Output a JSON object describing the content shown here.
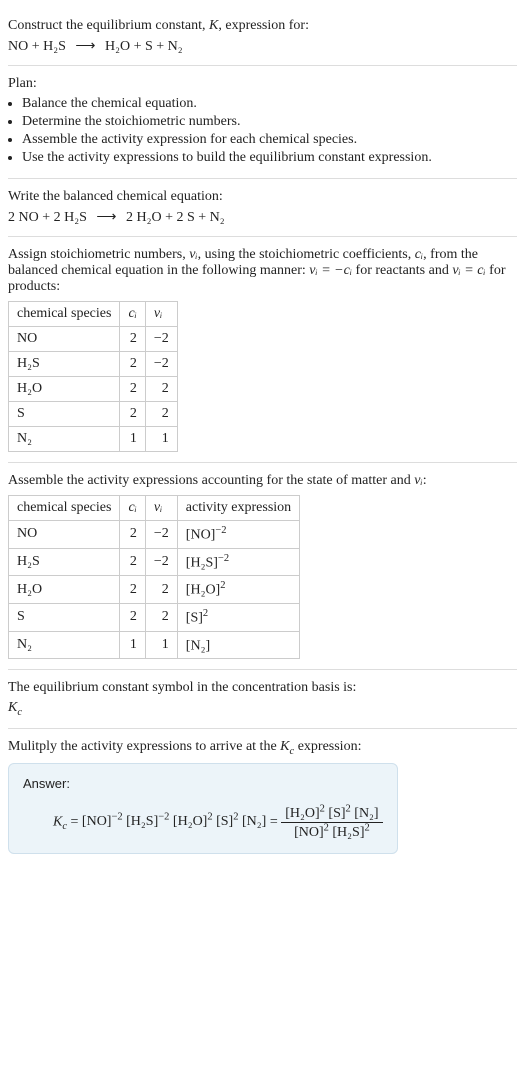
{
  "title_a": "Construct the equilibrium constant, ",
  "title_b": ", expression for:",
  "K": "K",
  "reaction_lhs": "NO + H₂S",
  "arrow": "⟶",
  "reaction_rhs": "H₂O + S + N₂",
  "plan_label": "Plan:",
  "plan": [
    "Balance the chemical equation.",
    "Determine the stoichiometric numbers.",
    "Assemble the activity expression for each chemical species.",
    "Use the activity expressions to build the equilibrium constant expression."
  ],
  "balanced_label": "Write the balanced chemical equation:",
  "balanced_lhs": "2 NO + 2 H₂S",
  "balanced_rhs": "2 H₂O + 2 S + N₂",
  "stoich_para_a": "Assign stoichiometric numbers, ",
  "nu_i": "νᵢ",
  "stoich_para_b": ", using the stoichiometric coefficients, ",
  "c_i": "cᵢ",
  "stoich_para_c": ", from the balanced chemical equation in the following manner: ",
  "rule1": "νᵢ = −cᵢ",
  "stoich_para_d": " for reactants and ",
  "rule2": "νᵢ = cᵢ",
  "stoich_para_e": " for products:",
  "table1": {
    "headers": {
      "species": "chemical species",
      "ci": "cᵢ",
      "vi": "νᵢ"
    },
    "rows": [
      {
        "species": "NO",
        "ci": "2",
        "vi": "−2"
      },
      {
        "species": "H₂S",
        "ci": "2",
        "vi": "−2"
      },
      {
        "species": "H₂O",
        "ci": "2",
        "vi": "2"
      },
      {
        "species": "S",
        "ci": "2",
        "vi": "2"
      },
      {
        "species": "N₂",
        "ci": "1",
        "vi": "1"
      }
    ]
  },
  "activity_label_a": "Assemble the activity expressions accounting for the state of matter and ",
  "activity_label_b": ":",
  "table2": {
    "headers": {
      "species": "chemical species",
      "ci": "cᵢ",
      "vi": "νᵢ",
      "act": "activity expression"
    },
    "rows": [
      {
        "species": "NO",
        "ci": "2",
        "vi": "−2",
        "act_base": "[NO]",
        "act_exp": "−2"
      },
      {
        "species": "H₂S",
        "ci": "2",
        "vi": "−2",
        "act_base": "[H₂S]",
        "act_exp": "−2"
      },
      {
        "species": "H₂O",
        "ci": "2",
        "vi": "2",
        "act_base": "[H₂O]",
        "act_exp": "2"
      },
      {
        "species": "S",
        "ci": "2",
        "vi": "2",
        "act_base": "[S]",
        "act_exp": "2"
      },
      {
        "species": "N₂",
        "ci": "1",
        "vi": "1",
        "act_base": "[N₂]",
        "act_exp": ""
      }
    ]
  },
  "kc_symbol_label": "The equilibrium constant symbol in the concentration basis is:",
  "Kc": "K",
  "Kc_sub": "c",
  "multiply_label_a": "Mulitply the activity expressions to arrive at the ",
  "multiply_label_b": " expression:",
  "answer_label": "Answer:",
  "final": {
    "prefix": "Kc = ",
    "flat": [
      {
        "base": "[NO]",
        "exp": "−2"
      },
      {
        "base": "[H₂S]",
        "exp": "−2"
      },
      {
        "base": "[H₂O]",
        "exp": "2"
      },
      {
        "base": "[S]",
        "exp": "2"
      },
      {
        "base": "[N₂]",
        "exp": ""
      }
    ],
    "eq": " = ",
    "num": [
      {
        "base": "[H₂O]",
        "exp": "2"
      },
      {
        "base": "[S]",
        "exp": "2"
      },
      {
        "base": "[N₂]",
        "exp": ""
      }
    ],
    "den": [
      {
        "base": "[NO]",
        "exp": "2"
      },
      {
        "base": "[H₂S]",
        "exp": "2"
      }
    ]
  },
  "colors": {
    "rule": "#dddddd",
    "table_border": "#cccccc",
    "answer_bg": "#ecf4f9",
    "answer_border": "#cfe0ec"
  }
}
